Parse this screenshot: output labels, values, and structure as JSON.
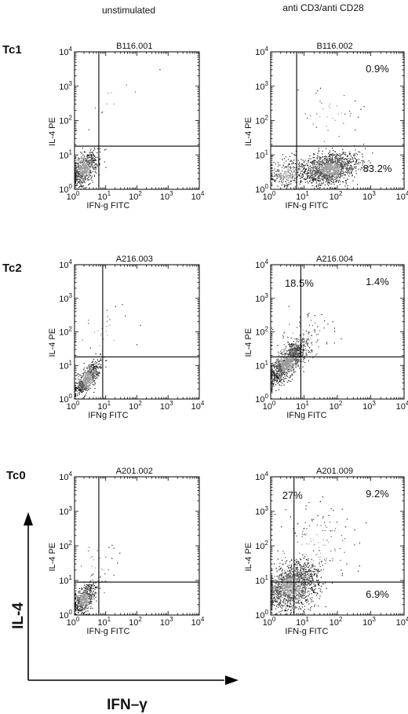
{
  "figure": {
    "column_headers": [
      "unstimulated",
      "anti CD3/anti CD28"
    ],
    "row_labels": [
      "Tc1",
      "Tc2",
      "Tc0"
    ],
    "overall_axes": {
      "y_label": "IL-4",
      "x_label": "IFN–γ"
    }
  },
  "chart_data": [
    {
      "type": "scatter",
      "scale": "log",
      "id": "B116.001",
      "row": "Tc1",
      "condition": "unstimulated",
      "xlabel": "IFN-g FITC",
      "ylabel": "IL-4 PE",
      "xlim": [
        1,
        10000
      ],
      "ylim": [
        1,
        10000
      ],
      "x_ticks": [
        "10^0",
        "10^1",
        "10^2",
        "10^3",
        "10^4"
      ],
      "y_ticks": [
        "10^0",
        "10^1",
        "10^2",
        "10^3",
        "10^4"
      ],
      "gate": {
        "x": 6,
        "y": 18
      },
      "quadrant_percentages": [],
      "clusters": [
        {
          "cx": 2,
          "cy": 4,
          "sx": 0.22,
          "sy": 0.25,
          "n": 700,
          "rho": 0.5
        },
        {
          "cx": 20,
          "cy": 300,
          "sx": 0.6,
          "sy": 0.5,
          "n": 12,
          "rho": 0.6
        }
      ]
    },
    {
      "type": "scatter",
      "scale": "log",
      "id": "B116.002",
      "row": "Tc1",
      "condition": "anti CD3/anti CD28",
      "xlabel": "IFN-g FITC",
      "ylabel": "IL-4 PE",
      "xlim": [
        1,
        10000
      ],
      "ylim": [
        1,
        10000
      ],
      "x_ticks": [
        "10^0",
        "10^1",
        "10^2",
        "10^3",
        "10^4"
      ],
      "y_ticks": [
        "10^0",
        "10^1",
        "10^2",
        "10^3",
        "10^4"
      ],
      "gate": {
        "x": 6,
        "y": 18
      },
      "quadrant_percentages": [
        {
          "quadrant": "upper-right",
          "text": "0.9%"
        },
        {
          "quadrant": "lower-right",
          "text": "83.2%"
        }
      ],
      "clusters": [
        {
          "cx": 60,
          "cy": 4,
          "sx": 0.4,
          "sy": 0.22,
          "n": 1400,
          "rho": 0.3
        },
        {
          "cx": 3,
          "cy": 3,
          "sx": 0.3,
          "sy": 0.2,
          "n": 300,
          "rho": 0.2
        },
        {
          "cx": 60,
          "cy": 150,
          "sx": 0.5,
          "sy": 0.5,
          "n": 40,
          "rho": 0.0
        }
      ]
    },
    {
      "type": "scatter",
      "scale": "log",
      "id": "A216.003",
      "row": "Tc2",
      "condition": "unstimulated",
      "xlabel": "IFNg FITC",
      "ylabel": "IL-4 PE",
      "xlim": [
        1,
        10000
      ],
      "ylim": [
        1,
        10000
      ],
      "x_ticks": [
        "10^0",
        "10^1",
        "10^2",
        "10^3",
        "10^4"
      ],
      "y_ticks": [
        "10^0",
        "10^1",
        "10^2",
        "10^3",
        "10^4"
      ],
      "gate": {
        "x": 8,
        "y": 18
      },
      "quadrant_percentages": [],
      "clusters": [
        {
          "cx": 2.5,
          "cy": 4,
          "sx": 0.2,
          "sy": 0.25,
          "n": 600,
          "rho": 0.7
        },
        {
          "cx": 8,
          "cy": 80,
          "sx": 0.5,
          "sy": 0.5,
          "n": 30,
          "rho": 0.6
        }
      ]
    },
    {
      "type": "scatter",
      "scale": "log",
      "id": "A216.004",
      "row": "Tc2",
      "condition": "anti CD3/anti CD28",
      "xlabel": "IFNg FITC",
      "ylabel": "IL-4 PE",
      "xlim": [
        1,
        10000
      ],
      "ylim": [
        1,
        10000
      ],
      "x_ticks": [
        "10^0",
        "10^1",
        "10^2",
        "10^3",
        "10^4"
      ],
      "y_ticks": [
        "10^0",
        "10^1",
        "10^2",
        "10^3",
        "10^4"
      ],
      "gate": {
        "x": 8,
        "y": 18
      },
      "quadrant_percentages": [
        {
          "quadrant": "upper-left",
          "text": "18.5%"
        },
        {
          "quadrant": "upper-right",
          "text": "1.4%"
        }
      ],
      "clusters": [
        {
          "cx": 3,
          "cy": 12,
          "sx": 0.28,
          "sy": 0.32,
          "n": 1200,
          "rho": 0.75
        },
        {
          "cx": 8,
          "cy": 60,
          "sx": 0.45,
          "sy": 0.45,
          "n": 120,
          "rho": 0.5
        }
      ]
    },
    {
      "type": "scatter",
      "scale": "log",
      "id": "A201.002",
      "row": "Tc0",
      "condition": "unstimulated",
      "xlabel": "IFN-g FITC",
      "ylabel": "IL-4 PE",
      "xlim": [
        1,
        10000
      ],
      "ylim": [
        1,
        10000
      ],
      "x_ticks": [
        "10^0",
        "10^1",
        "10^2",
        "10^3",
        "10^4"
      ],
      "y_ticks": [
        "10^0",
        "10^1",
        "10^2",
        "10^3",
        "10^4"
      ],
      "gate": {
        "x": 6,
        "y": 9
      },
      "quadrant_percentages": [],
      "clusters": [
        {
          "cx": 2,
          "cy": 3,
          "sx": 0.18,
          "sy": 0.22,
          "n": 550,
          "rho": 0.6
        },
        {
          "cx": 4,
          "cy": 20,
          "sx": 0.4,
          "sy": 0.5,
          "n": 40,
          "rho": 0.3
        }
      ]
    },
    {
      "type": "scatter",
      "scale": "log",
      "id": "A201.009",
      "row": "Tc0",
      "condition": "anti CD3/anti CD28",
      "xlabel": "IFN-g FITC",
      "ylabel": "IL-4 PE",
      "xlim": [
        1,
        10000
      ],
      "ylim": [
        1,
        10000
      ],
      "x_ticks": [
        "10^0",
        "10^1",
        "10^2",
        "10^3",
        "10^4"
      ],
      "y_ticks": [
        "10^0",
        "10^1",
        "10^2",
        "10^3",
        "10^4"
      ],
      "gate": {
        "x": 5,
        "y": 9
      },
      "quadrant_percentages": [
        {
          "quadrant": "upper-left",
          "text": "27%"
        },
        {
          "quadrant": "upper-right",
          "text": "9.2%"
        },
        {
          "quadrant": "lower-right",
          "text": "6.9%"
        }
      ],
      "clusters": [
        {
          "cx": 4,
          "cy": 7,
          "sx": 0.38,
          "sy": 0.33,
          "n": 1500,
          "rho": 0.3
        },
        {
          "cx": 20,
          "cy": 100,
          "sx": 0.6,
          "sy": 0.55,
          "n": 150,
          "rho": 0.2
        }
      ]
    }
  ]
}
